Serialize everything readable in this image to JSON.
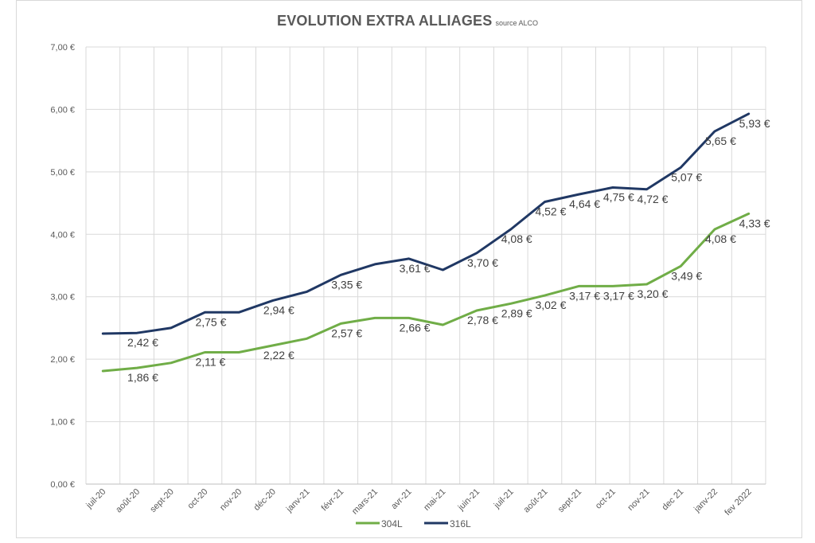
{
  "chart_data": {
    "type": "line",
    "title": "EVOLUTION EXTRA ALLIAGES",
    "subtitle": "source ALCO",
    "categories": [
      "juil-20",
      "août-20",
      "sept-20",
      "oct-20",
      "nov-20",
      "déc-20",
      "janv-21",
      "févr-21",
      "mars-21",
      "avr-21",
      "mai-21",
      "juin-21",
      "juil-21",
      "août-21",
      "sept-21",
      "oct-21",
      "nov-21",
      "dec 21",
      "janv-22",
      "fev 2022"
    ],
    "ylim": [
      0,
      7
    ],
    "yticks": [
      0,
      1,
      2,
      3,
      4,
      5,
      6,
      7
    ],
    "ytick_labels": [
      "0,00 €",
      "1,00 €",
      "2,00 €",
      "3,00 €",
      "4,00 €",
      "5,00 €",
      "6,00 €",
      "7,00 €"
    ],
    "grid": true,
    "legend_position": "bottom",
    "series": [
      {
        "name": "304L",
        "color": "#70ad47",
        "values": [
          1.81,
          1.86,
          1.94,
          2.11,
          2.11,
          2.22,
          2.33,
          2.57,
          2.66,
          2.66,
          2.55,
          2.78,
          2.89,
          3.02,
          3.17,
          3.17,
          3.2,
          3.49,
          4.08,
          4.33
        ],
        "data_labels": [
          null,
          "1,86 €",
          null,
          "2,11 €",
          null,
          "2,22 €",
          null,
          "2,57 €",
          null,
          "2,66 €",
          null,
          "2,78 €",
          "2,89 €",
          "3,02 €",
          "3,17 €",
          "3,17 €",
          "3,20 €",
          "3,49 €",
          "4,08 €",
          "4,33 €"
        ]
      },
      {
        "name": "316L",
        "color": "#203864",
        "values": [
          2.41,
          2.42,
          2.5,
          2.75,
          2.75,
          2.94,
          3.08,
          3.35,
          3.52,
          3.61,
          3.43,
          3.7,
          4.08,
          4.52,
          4.64,
          4.75,
          4.72,
          5.07,
          5.65,
          5.93
        ],
        "data_labels": [
          null,
          "2,42 €",
          null,
          "2,75 €",
          null,
          "2,94 €",
          null,
          "3,35 €",
          null,
          "3,61 €",
          null,
          "3,70 €",
          "4,08 €",
          "4,52 €",
          "4,64 €",
          "4,75 €",
          "4,72 €",
          "5,07 €",
          "5,65 €",
          "5,93 €"
        ]
      }
    ]
  }
}
